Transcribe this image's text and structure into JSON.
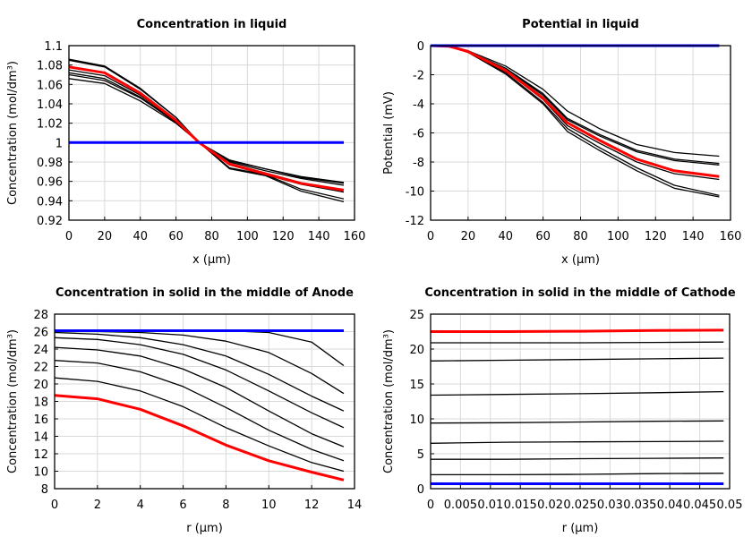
{
  "chart_data": [
    {
      "type": "line",
      "title": "Concentration in liquid",
      "xlabel": "x (µm)",
      "ylabel": "Concentration (mol/dm³)",
      "xlim": [
        0,
        160
      ],
      "ylim": [
        0.92,
        1.1
      ],
      "xticks": [
        "0",
        "20",
        "40",
        "60",
        "80",
        "100",
        "120",
        "140",
        "160"
      ],
      "yticks": [
        "0.92",
        "0.94",
        "0.96",
        "0.98",
        "1",
        "1.02",
        "1.04",
        "1.06",
        "1.08",
        "1.1"
      ],
      "grid": true,
      "x": [
        0,
        20,
        40,
        60,
        73,
        90,
        110,
        130,
        154
      ],
      "series": [
        {
          "color": "#000000",
          "values": [
            1.086,
            1.079,
            1.056,
            1.026,
            1.0,
            0.982,
            0.973,
            0.965,
            0.959
          ]
        },
        {
          "color": "#000000",
          "values": [
            1.085,
            1.078,
            1.055,
            1.026,
            1.0,
            0.981,
            0.973,
            0.964,
            0.958
          ]
        },
        {
          "color": "#000000",
          "values": [
            1.075,
            1.069,
            1.049,
            1.023,
            1.0,
            0.98,
            0.971,
            0.963,
            0.956
          ]
        },
        {
          "color": "#000000",
          "values": [
            1.072,
            1.066,
            1.047,
            1.022,
            1.0,
            0.977,
            0.967,
            0.957,
            0.949
          ]
        },
        {
          "color": "#000000",
          "values": [
            1.07,
            1.064,
            1.046,
            1.021,
            1.0,
            0.974,
            0.967,
            0.952,
            0.942
          ]
        },
        {
          "color": "#000000",
          "values": [
            1.066,
            1.061,
            1.043,
            1.02,
            1.0,
            0.973,
            0.966,
            0.95,
            0.939
          ]
        },
        {
          "color": "#ff0000",
          "values": [
            1.078,
            1.072,
            1.051,
            1.023,
            1.0,
            0.978,
            0.968,
            0.958,
            0.951
          ]
        },
        {
          "color": "#0000ff",
          "values": [
            1.0,
            1.0,
            1.0,
            1.0,
            1.0,
            1.0,
            1.0,
            1.0,
            1.0
          ]
        }
      ]
    },
    {
      "type": "line",
      "title": "Potential in liquid",
      "xlabel": "x (µm)",
      "ylabel": "Potential (mV)",
      "xlim": [
        0,
        160
      ],
      "ylim": [
        -12,
        0
      ],
      "xticks": [
        "0",
        "20",
        "40",
        "60",
        "80",
        "100",
        "120",
        "140",
        "160"
      ],
      "yticks": [
        "-12",
        "-10",
        "-8",
        "-6",
        "-4",
        "-2",
        "0"
      ],
      "grid": true,
      "x": [
        0,
        10,
        20,
        40,
        60,
        73,
        90,
        110,
        130,
        154
      ],
      "series": [
        {
          "color": "#000000",
          "values": [
            0,
            -0.05,
            -0.35,
            -1.4,
            -3.0,
            -4.5,
            -5.7,
            -6.8,
            -7.35,
            -7.6
          ]
        },
        {
          "color": "#000000",
          "values": [
            0,
            -0.05,
            -0.38,
            -1.55,
            -3.3,
            -5.0,
            -6.1,
            -7.2,
            -7.8,
            -8.1
          ]
        },
        {
          "color": "#000000",
          "values": [
            0,
            -0.05,
            -0.38,
            -1.6,
            -3.4,
            -5.1,
            -6.2,
            -7.3,
            -7.9,
            -8.2
          ]
        },
        {
          "color": "#000000",
          "values": [
            0,
            -0.05,
            -0.42,
            -1.75,
            -3.7,
            -5.5,
            -6.7,
            -8.0,
            -8.8,
            -9.2
          ]
        },
        {
          "color": "#000000",
          "values": [
            0,
            -0.05,
            -0.45,
            -1.85,
            -3.9,
            -5.7,
            -7.0,
            -8.4,
            -9.6,
            -10.3
          ]
        },
        {
          "color": "#000000",
          "values": [
            0,
            -0.05,
            -0.47,
            -1.95,
            -4.0,
            -5.9,
            -7.2,
            -8.6,
            -9.8,
            -10.4
          ]
        },
        {
          "color": "#ff0000",
          "values": [
            0,
            -0.05,
            -0.4,
            -1.7,
            -3.6,
            -5.3,
            -6.5,
            -7.8,
            -8.6,
            -9.0
          ]
        },
        {
          "color": "#0000ff",
          "values": [
            0,
            0,
            0,
            0,
            0,
            0,
            0,
            0,
            0,
            0
          ]
        }
      ]
    },
    {
      "type": "line",
      "title": "Concentration in solid in the middle of Anode",
      "xlabel": "r (µm)",
      "ylabel": "Concentration (mol/dm³)",
      "xlim": [
        0,
        14
      ],
      "ylim": [
        8,
        28
      ],
      "xticks": [
        "0",
        "2",
        "4",
        "6",
        "8",
        "10",
        "12",
        "14"
      ],
      "yticks": [
        "8",
        "10",
        "12",
        "14",
        "16",
        "18",
        "20",
        "22",
        "24",
        "26",
        "28"
      ],
      "grid": true,
      "x": [
        0,
        2,
        4,
        6,
        8,
        10,
        12,
        13.5
      ],
      "series": [
        {
          "color": "#000000",
          "values": [
            26.1,
            26.1,
            26.1,
            26.1,
            26.1,
            25.9,
            24.8,
            22.1
          ]
        },
        {
          "color": "#000000",
          "values": [
            26.0,
            26.0,
            25.9,
            25.6,
            24.9,
            23.6,
            21.2,
            18.9
          ]
        },
        {
          "color": "#000000",
          "values": [
            25.9,
            25.7,
            25.3,
            24.5,
            23.2,
            21.1,
            18.6,
            16.9
          ]
        },
        {
          "color": "#000000",
          "values": [
            25.3,
            25.1,
            24.5,
            23.4,
            21.6,
            19.2,
            16.7,
            15.0
          ]
        },
        {
          "color": "#000000",
          "values": [
            24.2,
            23.9,
            23.2,
            21.7,
            19.6,
            16.9,
            14.3,
            12.8
          ]
        },
        {
          "color": "#000000",
          "values": [
            22.7,
            22.4,
            21.4,
            19.7,
            17.3,
            14.7,
            12.5,
            11.2
          ]
        },
        {
          "color": "#000000",
          "values": [
            20.7,
            20.3,
            19.2,
            17.4,
            15.0,
            12.9,
            11.0,
            10.0
          ]
        },
        {
          "color": "#ff0000",
          "values": [
            18.7,
            18.3,
            17.1,
            15.2,
            13.0,
            11.2,
            9.9,
            9.0
          ]
        },
        {
          "color": "#0000ff",
          "values": [
            26.1,
            26.1,
            26.1,
            26.1,
            26.1,
            26.1,
            26.1,
            26.1
          ]
        }
      ]
    },
    {
      "type": "line",
      "title": "Concentration in solid in the middle of Cathode",
      "xlabel": "r (µm)",
      "ylabel": "Concentration (mol/dm³)",
      "xlim": [
        0,
        0.05
      ],
      "ylim": [
        0,
        25
      ],
      "xticks": [
        "0",
        "0.005",
        "0.01",
        "0.015",
        "0.02",
        "0.025",
        "0.03",
        "0.035",
        "0.04",
        "0.045",
        "0.05"
      ],
      "yticks": [
        "0",
        "5",
        "10",
        "15",
        "20",
        "25"
      ],
      "grid": true,
      "x": [
        0,
        0.0125,
        0.025,
        0.0375,
        0.049
      ],
      "series": [
        {
          "color": "#000000",
          "values": [
            20.9,
            20.9,
            20.9,
            20.95,
            21.0
          ]
        },
        {
          "color": "#000000",
          "values": [
            18.3,
            18.4,
            18.5,
            18.6,
            18.7
          ]
        },
        {
          "color": "#000000",
          "values": [
            13.4,
            13.5,
            13.6,
            13.75,
            13.9
          ]
        },
        {
          "color": "#000000",
          "values": [
            9.4,
            9.45,
            9.55,
            9.65,
            9.7
          ]
        },
        {
          "color": "#000000",
          "values": [
            6.5,
            6.65,
            6.7,
            6.75,
            6.8
          ]
        },
        {
          "color": "#000000",
          "values": [
            4.2,
            4.2,
            4.3,
            4.35,
            4.4
          ]
        },
        {
          "color": "#000000",
          "values": [
            2.0,
            2.0,
            2.05,
            2.15,
            2.2
          ]
        },
        {
          "color": "#ff0000",
          "values": [
            22.5,
            22.5,
            22.55,
            22.65,
            22.7
          ]
        },
        {
          "color": "#0000ff",
          "values": [
            0.7,
            0.7,
            0.7,
            0.7,
            0.7
          ]
        }
      ]
    }
  ]
}
